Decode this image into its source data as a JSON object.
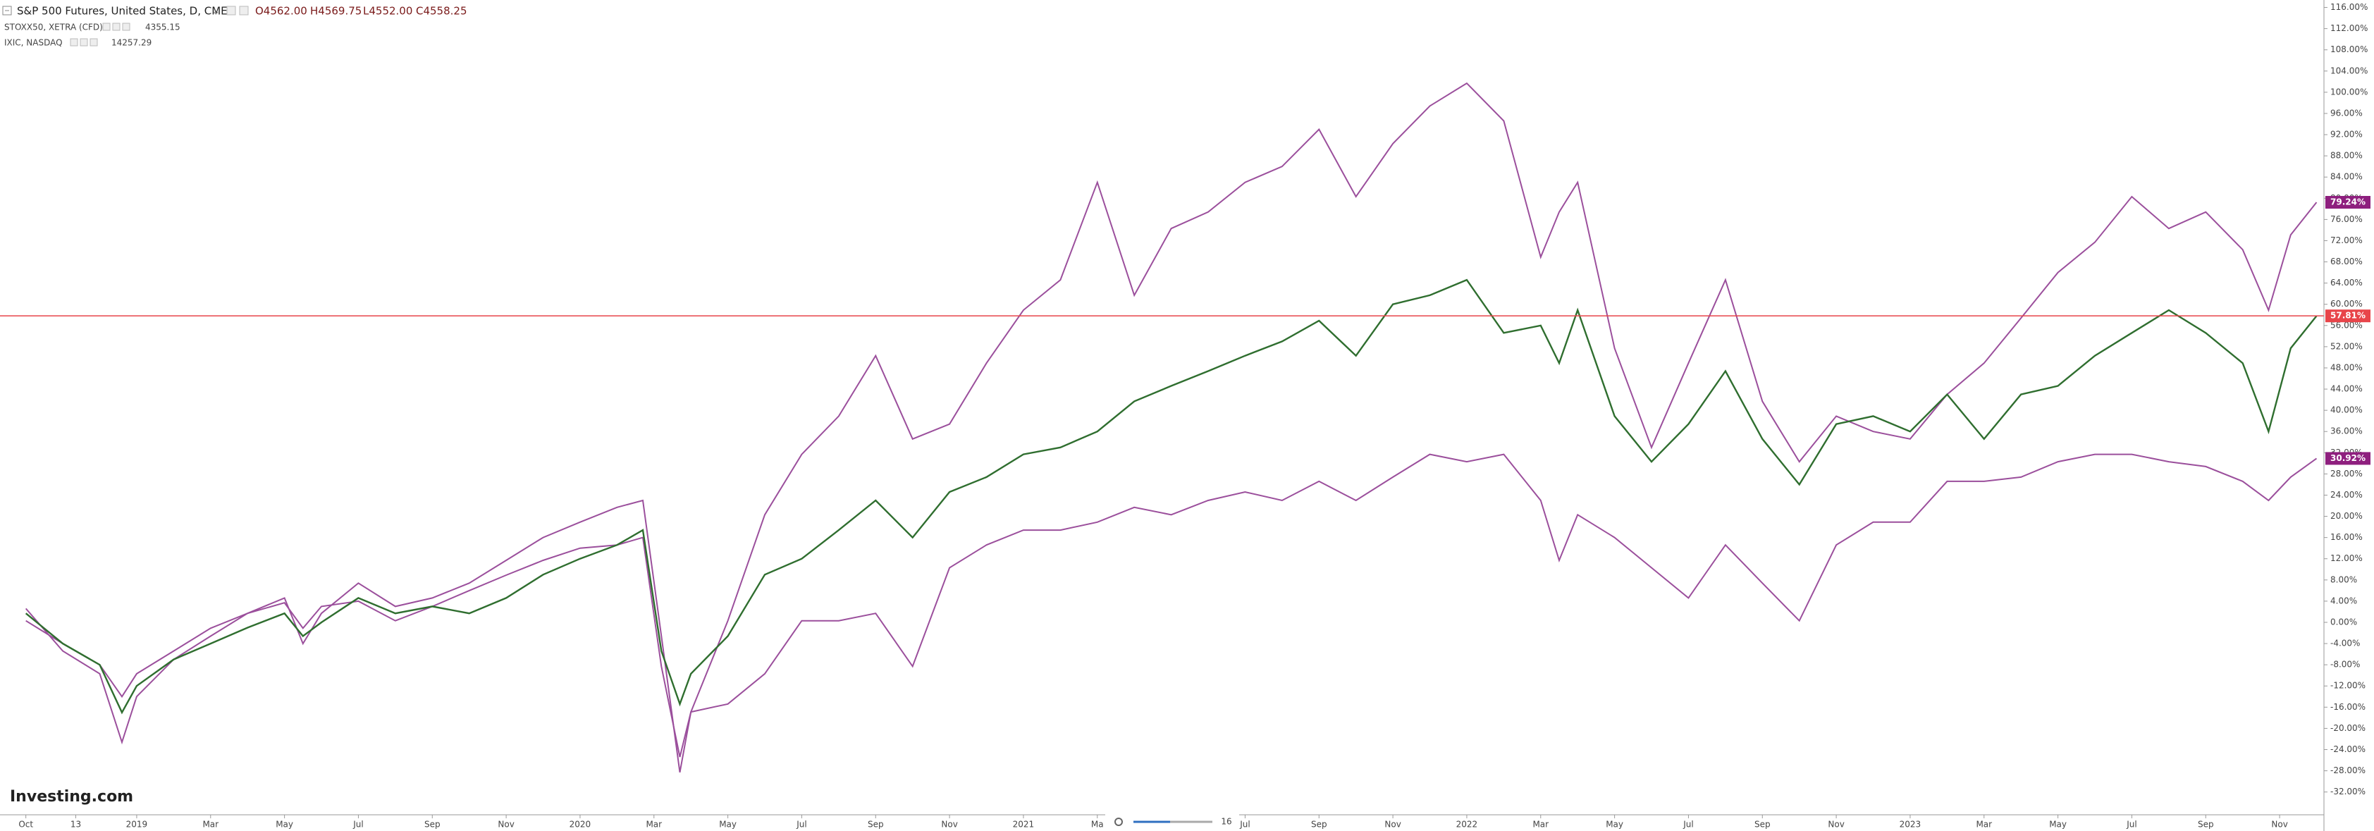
{
  "chart_data": {
    "type": "line",
    "header": {
      "title": "S&P 500 Futures, United States, D, CME",
      "ohlc": [
        "O4562.00",
        "H4569.75",
        "L4552.00",
        "C4558.25"
      ],
      "compare": [
        {
          "name": "STOXX50, XETRA (CFD)",
          "price": "4355.15"
        },
        {
          "name": "IXIC, NASDAQ",
          "price": "14257.29"
        }
      ]
    },
    "logo": "Investing.com",
    "zoom": "16",
    "xlim": [
      -0.7,
      62.2
    ],
    "ylim": [
      -36.3,
      117.4
    ],
    "grid": false,
    "x": [
      0,
      1,
      2,
      2.6,
      3,
      4,
      5,
      6,
      7,
      7.5,
      8,
      9,
      10,
      11,
      12,
      13,
      14,
      15,
      16,
      16.7,
      17.2,
      17.7,
      18,
      19,
      20,
      21,
      22,
      23,
      24,
      25,
      26,
      27,
      28,
      29,
      30,
      31,
      32,
      33,
      34,
      35,
      36,
      37,
      38,
      39,
      40,
      41,
      41.5,
      42,
      43,
      44,
      45,
      46,
      47,
      48,
      49,
      50,
      51,
      52,
      53,
      54,
      55,
      56,
      57,
      58,
      59,
      60,
      60.7,
      61.3,
      62
    ],
    "series": [
      {
        "name": "S&P 500 Futures",
        "color": "#2f6e2f",
        "last_label": "57.81%",
        "badge_color": "#e8454a",
        "values": [
          1.7,
          -4,
          -8,
          -17,
          -12,
          -7,
          -4,
          -1,
          1.7,
          -2.6,
          0,
          4.6,
          1.7,
          3,
          1.7,
          4.6,
          9,
          12,
          14.6,
          17.4,
          -5.4,
          -15.4,
          -9.7,
          -2.6,
          9,
          12,
          17.4,
          23,
          16,
          24.6,
          27.4,
          31.7,
          33,
          36,
          41.7,
          44.6,
          47.4,
          50.3,
          53,
          56.9,
          50.3,
          60,
          61.7,
          64.6,
          54.6,
          56,
          48.9,
          58.9,
          38.9,
          30.3,
          37.4,
          47.4,
          34.6,
          26,
          37.4,
          38.9,
          36,
          43,
          34.6,
          43,
          44.6,
          50.3,
          54.6,
          58.9,
          54.6,
          48.9,
          36,
          51.7,
          57.81
        ]
      },
      {
        "name": "IXIC, NASDAQ",
        "color": "#9b4f9c",
        "last_label": "79.24%",
        "badge_color": "#8e1f7e",
        "values": [
          2.6,
          -5.4,
          -9.7,
          -22.6,
          -14,
          -7,
          -2.6,
          1.7,
          4.6,
          -4,
          1.7,
          7.4,
          3,
          4.6,
          7.4,
          11.7,
          16,
          18.9,
          21.7,
          23,
          -2.6,
          -28.3,
          -16.9,
          0.3,
          20.3,
          31.7,
          38.9,
          50.3,
          34.6,
          37.4,
          48.9,
          58.9,
          64.6,
          83,
          61.7,
          74.3,
          77.4,
          83,
          86,
          93,
          80.3,
          90.3,
          97.4,
          101.7,
          94.6,
          68.9,
          77.4,
          83,
          51.7,
          33,
          48.9,
          64.6,
          41.7,
          30.3,
          38.9,
          36,
          34.6,
          43,
          48.9,
          57.4,
          66,
          71.7,
          80.3,
          74.3,
          77.4,
          70.3,
          58.9,
          73.1,
          79.24
        ]
      },
      {
        "name": "STOXX50, XETRA (CFD)",
        "color": "#9b4f9c",
        "last_label": "30.92%",
        "badge_color": "#8e1f7e",
        "values": [
          0.3,
          -4,
          -8,
          -14,
          -9.7,
          -5.4,
          -1.1,
          1.7,
          3.7,
          -1.1,
          3,
          4,
          0.3,
          3,
          6,
          8.9,
          11.7,
          14,
          14.6,
          16,
          -8.3,
          -25.4,
          -16.9,
          -15.4,
          -9.7,
          0.3,
          0.3,
          1.7,
          -8.3,
          10.3,
          14.6,
          17.4,
          17.4,
          18.9,
          21.7,
          20.3,
          23,
          24.6,
          23,
          26.6,
          23,
          27.4,
          31.7,
          30.3,
          31.7,
          23,
          11.7,
          20.3,
          16,
          10.3,
          4.6,
          14.6,
          7.4,
          0.3,
          14.6,
          18.9,
          18.9,
          26.6,
          26.6,
          27.4,
          30.3,
          31.7,
          31.7,
          30.3,
          29.4,
          26.6,
          23,
          27.4,
          30.92
        ]
      }
    ],
    "xticks": [
      {
        "value": 0,
        "label": "Oct"
      },
      {
        "value": 1.35,
        "label": "13"
      },
      {
        "value": 3,
        "label": "2019"
      },
      {
        "value": 5,
        "label": "Mar"
      },
      {
        "value": 7,
        "label": "May"
      },
      {
        "value": 9,
        "label": "Jul"
      },
      {
        "value": 11,
        "label": "Sep"
      },
      {
        "value": 13,
        "label": "Nov"
      },
      {
        "value": 15,
        "label": "2020"
      },
      {
        "value": 17,
        "label": "Mar"
      },
      {
        "value": 19,
        "label": "May"
      },
      {
        "value": 21,
        "label": "Jul"
      },
      {
        "value": 23,
        "label": "Sep"
      },
      {
        "value": 25,
        "label": "Nov"
      },
      {
        "value": 27,
        "label": "2021"
      },
      {
        "value": 29,
        "label": "Ma"
      },
      {
        "value": 33,
        "label": "Jul"
      },
      {
        "value": 35,
        "label": "Sep"
      },
      {
        "value": 37,
        "label": "Nov"
      },
      {
        "value": 39,
        "label": "2022"
      },
      {
        "value": 41,
        "label": "Mar"
      },
      {
        "value": 43,
        "label": "May"
      },
      {
        "value": 45,
        "label": "Jul"
      },
      {
        "value": 47,
        "label": "Sep"
      },
      {
        "value": 49,
        "label": "Nov"
      },
      {
        "value": 51,
        "label": "2023"
      },
      {
        "value": 53,
        "label": "Mar"
      },
      {
        "value": 55,
        "label": "May"
      },
      {
        "value": 57,
        "label": "Jul"
      },
      {
        "value": 59,
        "label": "Sep"
      },
      {
        "value": 61,
        "label": "Nov"
      }
    ],
    "yticks": [
      {
        "value": 116,
        "label": "116.00%"
      },
      {
        "value": 112,
        "label": "112.00%"
      },
      {
        "value": 108,
        "label": "108.00%"
      },
      {
        "value": 104,
        "label": "104.00%"
      },
      {
        "value": 100,
        "label": "100.00%"
      },
      {
        "value": 96,
        "label": "96.00%"
      },
      {
        "value": 92,
        "label": "92.00%"
      },
      {
        "value": 88,
        "label": "88.00%"
      },
      {
        "value": 84,
        "label": "84.00%"
      },
      {
        "value": 80,
        "label": "80.00%"
      },
      {
        "value": 76,
        "label": "76.00%"
      },
      {
        "value": 72,
        "label": "72.00%"
      },
      {
        "value": 68,
        "label": "68.00%"
      },
      {
        "value": 64,
        "label": "64.00%"
      },
      {
        "value": 60,
        "label": "60.00%"
      },
      {
        "value": 56,
        "label": "56.00%"
      },
      {
        "value": 52,
        "label": "52.00%"
      },
      {
        "value": 48,
        "label": "48.00%"
      },
      {
        "value": 44,
        "label": "44.00%"
      },
      {
        "value": 40,
        "label": "40.00%"
      },
      {
        "value": 36,
        "label": "36.00%"
      },
      {
        "value": 32,
        "label": "32.00%"
      },
      {
        "value": 28,
        "label": "28.00%"
      },
      {
        "value": 24,
        "label": "24.00%"
      },
      {
        "value": 20,
        "label": "20.00%"
      },
      {
        "value": 16,
        "label": "16.00%"
      },
      {
        "value": 12,
        "label": "12.00%"
      },
      {
        "value": 8,
        "label": "8.00%"
      },
      {
        "value": 4,
        "label": "4.00%"
      },
      {
        "value": 0,
        "label": "0.00%"
      },
      {
        "value": -4,
        "label": "-4.00%"
      },
      {
        "value": -8,
        "label": "-8.00%"
      },
      {
        "value": -12,
        "label": "-12.00%"
      },
      {
        "value": -16,
        "label": "-16.00%"
      },
      {
        "value": -20,
        "label": "-20.00%"
      },
      {
        "value": -24,
        "label": "-24.00%"
      },
      {
        "value": -28,
        "label": "-28.00%"
      },
      {
        "value": -32,
        "label": "-32.00%"
      }
    ]
  }
}
